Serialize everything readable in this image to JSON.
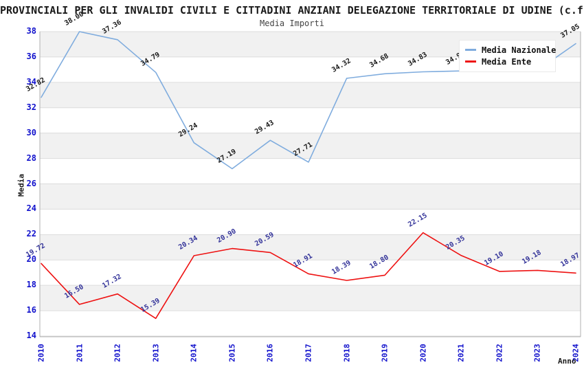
{
  "title": "PROVINCIALI PER GLI INVALIDI CIVILI E CITTADINI ANZIANI DELEGAZIONE TERRITORIALE DI UDINE (c.f",
  "subtitle": "Media Importi",
  "axes": {
    "y_label": "Media",
    "x_label": "Anno",
    "y_ticks": [
      38,
      36,
      34,
      32,
      30,
      28,
      26,
      24,
      22,
      20,
      18,
      16,
      14
    ],
    "x_ticks": [
      "2010",
      "2011",
      "2012",
      "2013",
      "2014",
      "2015",
      "2016",
      "2017",
      "2018",
      "2019",
      "2020",
      "2021",
      "2022",
      "2023",
      "2024"
    ]
  },
  "legend": {
    "position": "top-right",
    "items": [
      {
        "label": "Media Nazionale",
        "color": "#7facde"
      },
      {
        "label": "Media Ente",
        "color": "#ee1111"
      }
    ]
  },
  "colors": {
    "background": "#ffffff",
    "band": "#f1f1f1",
    "grid": "#dcdcdc",
    "frame": "#b0b0b0",
    "tick_text": "#1111cc",
    "national_line": "#7facde",
    "ente_line": "#ee1111",
    "national_label_text": "#1a1a1a",
    "ente_label_text": "#333399"
  },
  "chart_data": {
    "type": "line",
    "title": "Media Importi",
    "xlabel": "Anno",
    "ylabel": "Media",
    "x": [
      "2010",
      "2011",
      "2012",
      "2013",
      "2014",
      "2015",
      "2016",
      "2017",
      "2018",
      "2019",
      "2020",
      "2021",
      "2022",
      "2023",
      "2024"
    ],
    "ylim": [
      14,
      38
    ],
    "y_tick_step": 2,
    "grid": "horizontal",
    "alternating_bands": true,
    "legend_position": "top-right",
    "series": [
      {
        "name": "Media Nazionale",
        "color": "#7facde",
        "label_color": "#1a1a1a",
        "values": [
          32.82,
          38.0,
          37.36,
          34.79,
          29.24,
          27.19,
          29.43,
          27.71,
          34.32,
          34.68,
          34.83,
          34.9,
          34.85,
          34.95,
          37.05
        ],
        "labels": [
          "32.82",
          "38.00",
          "37.36",
          "34.79",
          "29.24",
          "27.19",
          "29.43",
          "27.71",
          "34.32",
          "34.68",
          "34.83",
          "34.90",
          "34.85",
          "34.95",
          "37.05"
        ],
        "labels_hidden_by_legend": [
          "2021",
          "2022",
          "2023"
        ]
      },
      {
        "name": "Media Ente",
        "color": "#ee1111",
        "label_color": "#333399",
        "values": [
          19.72,
          16.5,
          17.32,
          15.39,
          20.34,
          20.9,
          20.59,
          18.91,
          18.39,
          18.8,
          22.15,
          20.35,
          19.1,
          19.18,
          18.97
        ],
        "labels": [
          "19.72",
          "16.50",
          "17.32",
          "15.39",
          "20.34",
          "20.90",
          "20.59",
          "18.91",
          "18.39",
          "18.80",
          "22.15",
          "20.35",
          "19.10",
          "19.18",
          "18.97"
        ]
      }
    ]
  }
}
